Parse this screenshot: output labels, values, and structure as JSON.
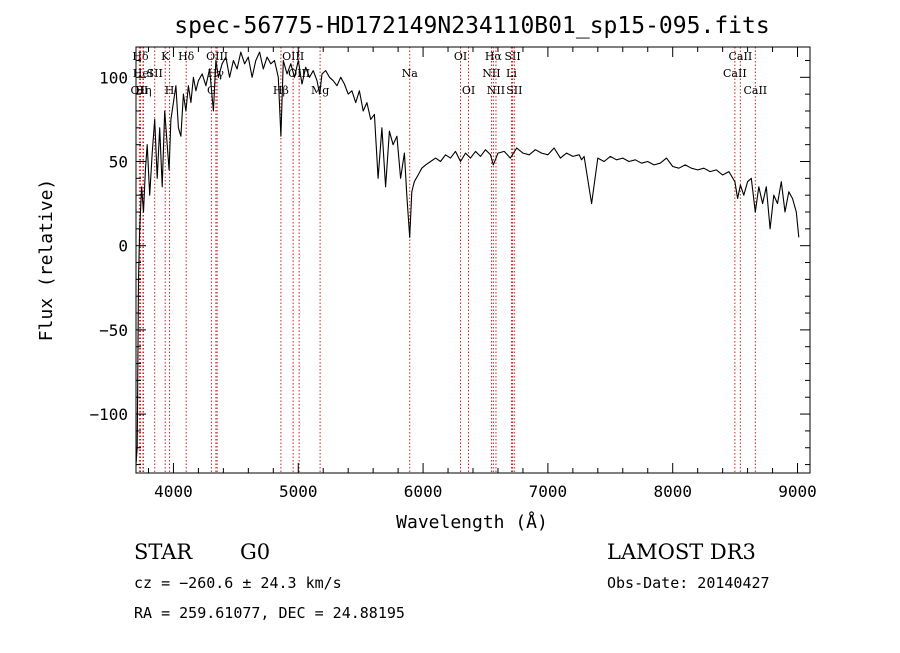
{
  "chart_data": {
    "type": "line",
    "title": "spec-56775-HD172149N234110B01_sp15-095.fits",
    "xlabel": "Wavelength (Å)",
    "ylabel": "Flux (relative)",
    "xlim": [
      3700,
      9100
    ],
    "ylim": [
      -135,
      118
    ],
    "xticks": [
      4000,
      5000,
      6000,
      7000,
      8000,
      9000
    ],
    "xtick_labels": [
      "4000",
      "5000",
      "6000",
      "7000",
      "8000",
      "9000"
    ],
    "yticks": [
      -100,
      -50,
      0,
      50,
      100
    ],
    "ytick_labels": [
      "−100",
      "−50",
      "0",
      "50",
      "100"
    ],
    "grid": false,
    "series": [
      {
        "name": "spectrum",
        "color": "#000000",
        "x": [
          3700,
          3710,
          3720,
          3730,
          3745,
          3760,
          3775,
          3790,
          3810,
          3830,
          3850,
          3870,
          3890,
          3910,
          3930,
          3950,
          3965,
          3980,
          4000,
          4020,
          4040,
          4060,
          4080,
          4100,
          4120,
          4140,
          4160,
          4180,
          4200,
          4230,
          4260,
          4290,
          4320,
          4340,
          4360,
          4390,
          4420,
          4450,
          4480,
          4510,
          4540,
          4570,
          4600,
          4630,
          4660,
          4690,
          4720,
          4750,
          4780,
          4810,
          4840,
          4861,
          4880,
          4910,
          4940,
          4970,
          5000,
          5030,
          5060,
          5090,
          5120,
          5150,
          5172,
          5190,
          5220,
          5250,
          5280,
          5310,
          5340,
          5370,
          5400,
          5430,
          5460,
          5490,
          5520,
          5550,
          5580,
          5610,
          5640,
          5670,
          5700,
          5730,
          5760,
          5790,
          5820,
          5850,
          5870,
          5893,
          5910,
          5930,
          5960,
          5990,
          6020,
          6060,
          6100,
          6140,
          6180,
          6220,
          6260,
          6300,
          6340,
          6380,
          6420,
          6460,
          6500,
          6540,
          6563,
          6600,
          6650,
          6700,
          6750,
          6800,
          6850,
          6900,
          6950,
          7000,
          7050,
          7100,
          7150,
          7200,
          7250,
          7270,
          7290,
          7350,
          7400,
          7450,
          7500,
          7550,
          7600,
          7650,
          7700,
          7750,
          7800,
          7850,
          7900,
          7950,
          8000,
          8050,
          8100,
          8150,
          8200,
          8250,
          8300,
          8350,
          8400,
          8450,
          8498,
          8520,
          8542,
          8570,
          8600,
          8630,
          8662,
          8690,
          8720,
          8750,
          8780,
          8810,
          8840,
          8870,
          8900,
          8930,
          8960,
          8990,
          9010
        ],
        "y": [
          -130,
          -120,
          -20,
          10,
          35,
          20,
          45,
          60,
          30,
          55,
          75,
          40,
          70,
          35,
          80,
          60,
          45,
          75,
          85,
          95,
          70,
          65,
          90,
          80,
          95,
          85,
          100,
          92,
          98,
          102,
          95,
          105,
          80,
          110,
          100,
          108,
          112,
          100,
          110,
          105,
          115,
          108,
          112,
          100,
          110,
          115,
          105,
          112,
          108,
          110,
          100,
          65,
          110,
          102,
          108,
          100,
          110,
          96,
          106,
          100,
          104,
          98,
          90,
          102,
          104,
          100,
          98,
          95,
          100,
          96,
          90,
          92,
          85,
          92,
          80,
          85,
          75,
          78,
          40,
          70,
          35,
          68,
          60,
          65,
          40,
          55,
          30,
          5,
          32,
          38,
          42,
          46,
          48,
          50,
          52,
          50,
          54,
          52,
          56,
          50,
          55,
          52,
          56,
          53,
          57,
          54,
          48,
          55,
          56,
          52,
          58,
          55,
          54,
          57,
          55,
          54,
          58,
          52,
          55,
          53,
          54,
          51,
          53,
          25,
          52,
          50,
          53,
          51,
          52,
          50,
          51,
          49,
          50,
          48,
          49,
          52,
          47,
          46,
          48,
          46,
          45,
          46,
          44,
          45,
          42,
          44,
          38,
          28,
          36,
          30,
          38,
          40,
          20,
          35,
          25,
          35,
          10,
          30,
          25,
          38,
          20,
          32,
          28,
          20,
          5
        ]
      }
    ],
    "spectral_lines": [
      {
        "label": "Hδ",
        "x": 3736,
        "row": 0
      },
      {
        "label": "OII",
        "x": 3727,
        "row": 2
      },
      {
        "label": "HeI",
        "x": 3756,
        "row": 1
      },
      {
        "label": "Hη",
        "x": 3760,
        "row": 2
      },
      {
        "label": "K",
        "x": 3934,
        "row": 0
      },
      {
        "label": "SII",
        "x": 3850,
        "row": 1
      },
      {
        "label": "H",
        "x": 3969,
        "row": 2
      },
      {
        "label": "Hδ",
        "x": 4102,
        "row": 0
      },
      {
        "label": "OIII",
        "x": 4350,
        "row": 0
      },
      {
        "label": "Hγ",
        "x": 4340,
        "row": 1
      },
      {
        "label": "G",
        "x": 4304,
        "row": 2
      },
      {
        "label": "Hβ",
        "x": 4861,
        "row": 2
      },
      {
        "label": "OIII",
        "x": 4959,
        "row": 0
      },
      {
        "label": "OIII",
        "x": 5007,
        "row": 1
      },
      {
        "label": "Mg",
        "x": 5175,
        "row": 2
      },
      {
        "label": "Na",
        "x": 5893,
        "row": 1
      },
      {
        "label": "OI",
        "x": 6300,
        "row": 0
      },
      {
        "label": "OI",
        "x": 6364,
        "row": 2
      },
      {
        "label": "Hα",
        "x": 6563,
        "row": 0
      },
      {
        "label": "NII",
        "x": 6548,
        "row": 1
      },
      {
        "label": "NII",
        "x": 6584,
        "row": 2
      },
      {
        "label": "SII",
        "x": 6717,
        "row": 0
      },
      {
        "label": "Li",
        "x": 6708,
        "row": 1
      },
      {
        "label": "SII",
        "x": 6731,
        "row": 2
      },
      {
        "label": "CaII",
        "x": 8542,
        "row": 0
      },
      {
        "label": "CaII",
        "x": 8498,
        "row": 1
      },
      {
        "label": "CaII",
        "x": 8662,
        "row": 2
      }
    ]
  },
  "info": {
    "object_type": "STAR",
    "subclass": "G0",
    "survey": "LAMOST DR3",
    "redshift_line": "cz = −260.6 ± 24.3 km/s",
    "obs_date_line": "Obs-Date: 20140427",
    "coords_line": "RA = 259.61077, DEC =  24.88195"
  },
  "colors": {
    "line_marker": "#cc2222",
    "spectrum": "#000000"
  }
}
